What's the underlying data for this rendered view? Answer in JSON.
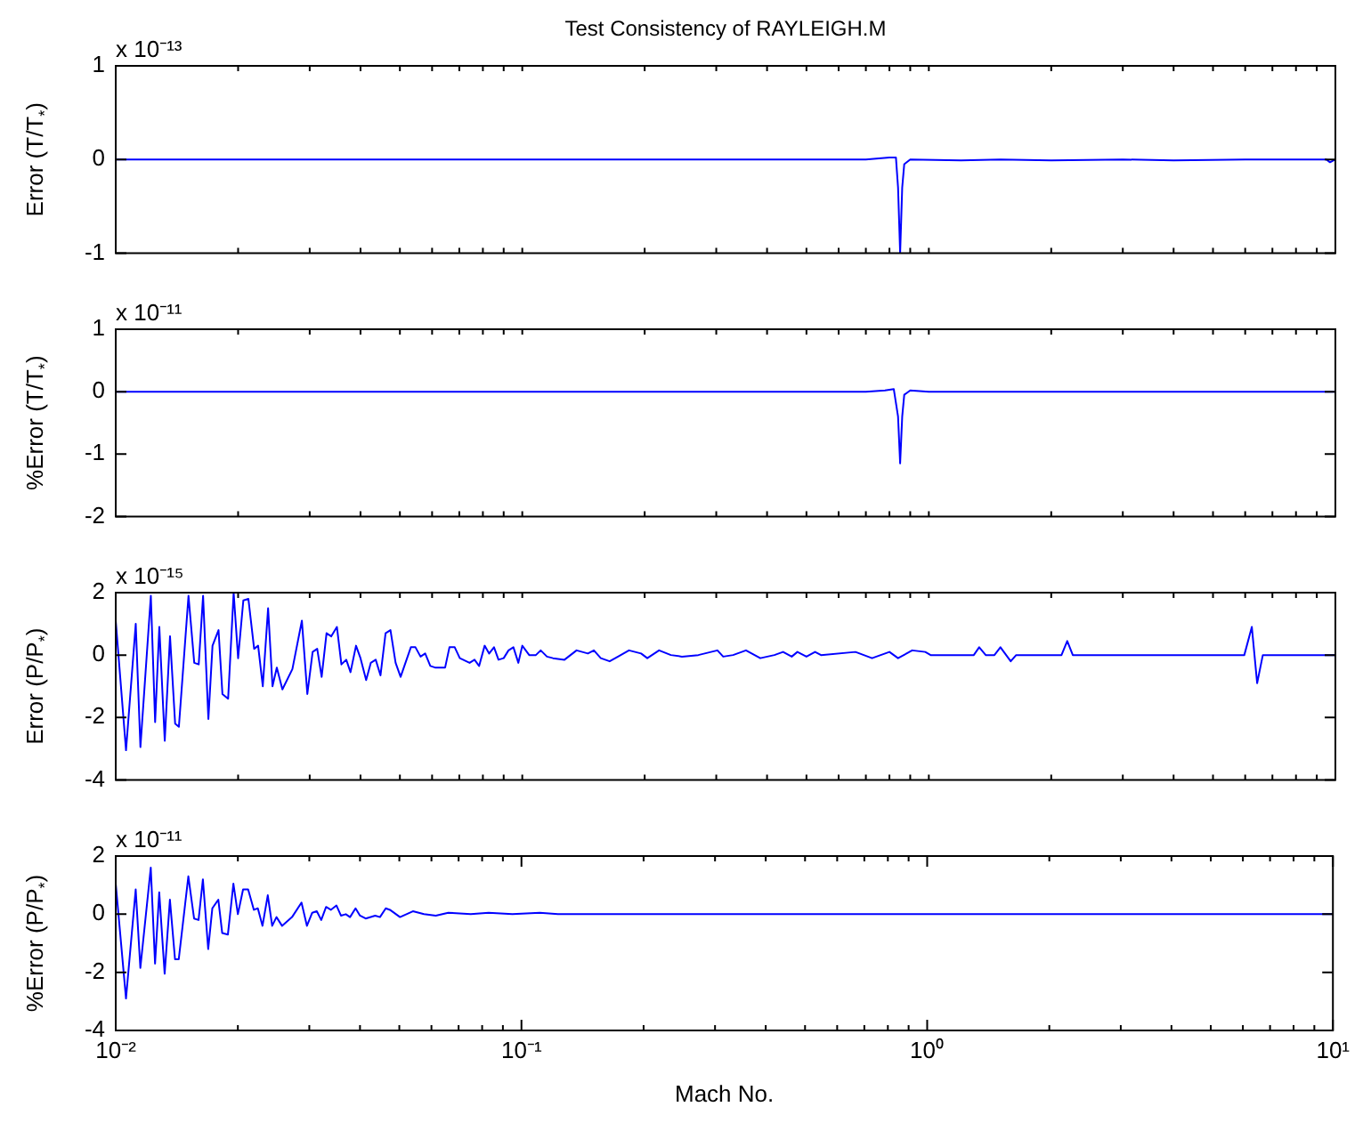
{
  "chart_data": [
    {
      "type": "line",
      "title": "Test Consistency of RAYLEIGH.M",
      "ylabel": "Error (T/T$_{*}$)",
      "annotations": [
        "x 10⁻¹³"
      ],
      "log": "x",
      "tick_labels": "y",
      "xlim": [
        0.01,
        10
      ],
      "ylim": [
        -1,
        1
      ],
      "yticks": [
        -1,
        0,
        1
      ],
      "xticks": [
        {
          "value": 0.01,
          "label": null
        },
        {
          "value": 0.02,
          "label": null
        },
        {
          "value": 0.03,
          "label": null
        },
        {
          "value": 0.04,
          "label": null
        },
        {
          "value": 0.05,
          "label": null
        },
        {
          "value": 0.06,
          "label": null
        },
        {
          "value": 0.07,
          "label": null
        },
        {
          "value": 0.08,
          "label": null
        },
        {
          "value": 0.09,
          "label": null
        },
        {
          "value": 0.1,
          "label": null
        },
        {
          "value": 0.2,
          "label": null
        },
        {
          "value": 0.3,
          "label": null
        },
        {
          "value": 0.4,
          "label": null
        },
        {
          "value": 0.5,
          "label": null
        },
        {
          "value": 0.6,
          "label": null
        },
        {
          "value": 0.7,
          "label": null
        },
        {
          "value": 0.8,
          "label": null
        },
        {
          "value": 0.9,
          "label": null
        },
        {
          "value": 1,
          "label": null
        },
        {
          "value": 2,
          "label": null
        },
        {
          "value": 3,
          "label": null
        },
        {
          "value": 4,
          "label": null
        },
        {
          "value": 5,
          "label": null
        },
        {
          "value": 6,
          "label": null
        },
        {
          "value": 7,
          "label": null
        },
        {
          "value": 8,
          "label": null
        },
        {
          "value": 9,
          "label": null
        },
        {
          "value": 10,
          "label": null
        }
      ],
      "series": [
        {
          "color": "#0000ff",
          "x": [
            0.01,
            0.7,
            0.8,
            0.83,
            0.84,
            0.85,
            0.86,
            0.87,
            0.9,
            1.2,
            1.5,
            2,
            3,
            4,
            6,
            8,
            9.5,
            9.7,
            10
          ],
          "values": [
            0,
            0,
            0.02,
            0.02,
            -0.3,
            -1,
            -0.3,
            -0.05,
            0,
            -0.01,
            0,
            -0.01,
            0,
            -0.01,
            0,
            0,
            0,
            -0.03,
            0
          ]
        }
      ]
    },
    {
      "type": "line",
      "ylabel": "%Error (T/T$_{*}$)",
      "annotations": [
        "x 10⁻¹¹"
      ],
      "log": "x",
      "tick_labels": "y",
      "xlim": [
        0.01,
        10
      ],
      "ylim": [
        -2,
        1
      ],
      "yticks": [
        -2,
        -1,
        0,
        1
      ],
      "xticks": [
        {
          "value": 0.01,
          "label": null
        },
        {
          "value": 0.02,
          "label": null
        },
        {
          "value": 0.03,
          "label": null
        },
        {
          "value": 0.04,
          "label": null
        },
        {
          "value": 0.05,
          "label": null
        },
        {
          "value": 0.06,
          "label": null
        },
        {
          "value": 0.07,
          "label": null
        },
        {
          "value": 0.08,
          "label": null
        },
        {
          "value": 0.09,
          "label": null
        },
        {
          "value": 0.1,
          "label": null
        },
        {
          "value": 0.2,
          "label": null
        },
        {
          "value": 0.3,
          "label": null
        },
        {
          "value": 0.4,
          "label": null
        },
        {
          "value": 0.5,
          "label": null
        },
        {
          "value": 0.6,
          "label": null
        },
        {
          "value": 0.7,
          "label": null
        },
        {
          "value": 0.8,
          "label": null
        },
        {
          "value": 0.9,
          "label": null
        },
        {
          "value": 1,
          "label": null
        },
        {
          "value": 2,
          "label": null
        },
        {
          "value": 3,
          "label": null
        },
        {
          "value": 4,
          "label": null
        },
        {
          "value": 5,
          "label": null
        },
        {
          "value": 6,
          "label": null
        },
        {
          "value": 7,
          "label": null
        },
        {
          "value": 8,
          "label": null
        },
        {
          "value": 9,
          "label": null
        },
        {
          "value": 10,
          "label": null
        }
      ],
      "series": [
        {
          "color": "#0000ff",
          "x": [
            0.01,
            0.7,
            0.78,
            0.82,
            0.84,
            0.85,
            0.86,
            0.87,
            0.9,
            1,
            10
          ],
          "values": [
            0,
            0,
            0.02,
            0.04,
            -0.4,
            -1.15,
            -0.4,
            -0.05,
            0.02,
            0,
            0
          ]
        }
      ]
    },
    {
      "type": "line",
      "ylabel": "Error (P/P$_{*}$)",
      "annotations": [
        "x 10⁻¹⁵"
      ],
      "log": "x",
      "tick_labels": "y",
      "xlim": [
        0.01,
        10
      ],
      "ylim": [
        -4,
        2
      ],
      "yticks": [
        -4,
        -2,
        0,
        2
      ],
      "xticks": [
        {
          "value": 0.01,
          "label": null
        },
        {
          "value": 0.02,
          "label": null
        },
        {
          "value": 0.03,
          "label": null
        },
        {
          "value": 0.04,
          "label": null
        },
        {
          "value": 0.05,
          "label": null
        },
        {
          "value": 0.06,
          "label": null
        },
        {
          "value": 0.07,
          "label": null
        },
        {
          "value": 0.08,
          "label": null
        },
        {
          "value": 0.09,
          "label": null
        },
        {
          "value": 0.1,
          "label": null
        },
        {
          "value": 0.2,
          "label": null
        },
        {
          "value": 0.3,
          "label": null
        },
        {
          "value": 0.4,
          "label": null
        },
        {
          "value": 0.5,
          "label": null
        },
        {
          "value": 0.6,
          "label": null
        },
        {
          "value": 0.7,
          "label": null
        },
        {
          "value": 0.8,
          "label": null
        },
        {
          "value": 0.9,
          "label": null
        },
        {
          "value": 1,
          "label": null
        },
        {
          "value": 2,
          "label": null
        },
        {
          "value": 3,
          "label": null
        },
        {
          "value": 4,
          "label": null
        },
        {
          "value": 5,
          "label": null
        },
        {
          "value": 6,
          "label": null
        },
        {
          "value": 7,
          "label": null
        },
        {
          "value": 8,
          "label": null
        },
        {
          "value": 9,
          "label": null
        },
        {
          "value": 10,
          "label": null
        }
      ],
      "series": [
        {
          "color": "#0000ff",
          "x": [
            0.01,
            0.0106,
            0.0112,
            0.0115,
            0.0122,
            0.0125,
            0.0128,
            0.0132,
            0.0136,
            0.014,
            0.0143,
            0.0151,
            0.0156,
            0.016,
            0.0164,
            0.0169,
            0.0173,
            0.0179,
            0.0183,
            0.0189,
            0.0195,
            0.02,
            0.0206,
            0.0212,
            0.0219,
            0.0224,
            0.023,
            0.0237,
            0.0243,
            0.0249,
            0.0257,
            0.0272,
            0.0287,
            0.0296,
            0.0305,
            0.0313,
            0.0321,
            0.033,
            0.0339,
            0.035,
            0.0359,
            0.0369,
            0.0378,
            0.039,
            0.04,
            0.0413,
            0.0424,
            0.0436,
            0.0448,
            0.0461,
            0.0474,
            0.0488,
            0.0502,
            0.0532,
            0.0546,
            0.0562,
            0.0577,
            0.0594,
            0.061,
            0.0646,
            0.0662,
            0.0682,
            0.0702,
            0.0742,
            0.0763,
            0.0783,
            0.0808,
            0.0829,
            0.0852,
            0.0874,
            0.09,
            0.0925,
            0.0951,
            0.0978,
            0.1,
            0.104,
            0.108,
            0.111,
            0.115,
            0.119,
            0.127,
            0.136,
            0.145,
            0.15,
            0.156,
            0.164,
            0.172,
            0.183,
            0.196,
            0.203,
            0.217,
            0.232,
            0.247,
            0.271,
            0.302,
            0.312,
            0.33,
            0.355,
            0.385,
            0.417,
            0.438,
            0.46,
            0.475,
            0.5,
            0.525,
            0.543,
            0.66,
            0.725,
            0.8,
            0.84,
            0.91,
            0.98,
            1.01,
            1.29,
            1.33,
            1.38,
            1.45,
            1.5,
            1.59,
            1.64,
            2.12,
            2.19,
            2.26,
            5.97,
            6.23,
            6.42,
            6.63,
            10
          ],
          "values": [
            1.1,
            -3.05,
            1,
            -2.95,
            1.9,
            -2.15,
            0.9,
            -2.75,
            0.6,
            -2.2,
            -2.3,
            1.9,
            -0.25,
            -0.3,
            1.9,
            -2.05,
            0.3,
            0.8,
            -1.25,
            -1.4,
            2,
            -0.1,
            1.75,
            1.8,
            0.2,
            0.3,
            -1,
            1.5,
            -1,
            -0.4,
            -1.1,
            -0.45,
            1.1,
            -1.25,
            0.1,
            0.2,
            -0.7,
            0.7,
            0.6,
            0.9,
            -0.3,
            -0.15,
            -0.55,
            0.3,
            -0.1,
            -0.8,
            -0.25,
            -0.15,
            -0.65,
            0.7,
            0.8,
            -0.25,
            -0.7,
            0.25,
            0.25,
            -0.05,
            0.05,
            -0.35,
            -0.4,
            -0.4,
            0.25,
            0.25,
            -0.1,
            -0.25,
            -0.15,
            -0.35,
            0.3,
            0.05,
            0.25,
            -0.15,
            -0.1,
            0.15,
            0.25,
            -0.25,
            0.3,
            0,
            0,
            0.15,
            -0.05,
            -0.1,
            -0.15,
            0.15,
            0.05,
            0.15,
            -0.1,
            -0.2,
            -0.05,
            0.15,
            0.05,
            -0.1,
            0.15,
            0,
            -0.05,
            0,
            0.15,
            -0.05,
            0,
            0.15,
            -0.1,
            0,
            0.1,
            -0.05,
            0.1,
            -0.05,
            0.1,
            0,
            0.1,
            -0.1,
            0.1,
            -0.1,
            0.15,
            0.1,
            0,
            0,
            0.25,
            0,
            0,
            0.25,
            -0.2,
            0,
            0,
            0.45,
            0,
            0,
            0.9,
            -0.9,
            0,
            0
          ]
        }
      ]
    },
    {
      "type": "line",
      "ylabel": "%Error (P/P$_{*}$)",
      "xlabel": "Mach No.",
      "annotations": [
        "x 10⁻¹¹"
      ],
      "log": "x",
      "xlim": [
        0.01,
        10
      ],
      "ylim": [
        -4,
        2
      ],
      "yticks": [
        -4,
        -2,
        0,
        2
      ],
      "xticks": [
        {
          "value": 0.01,
          "label": "10⁻²"
        },
        {
          "value": 0.02,
          "label": null
        },
        {
          "value": 0.03,
          "label": null
        },
        {
          "value": 0.04,
          "label": null
        },
        {
          "value": 0.05,
          "label": null
        },
        {
          "value": 0.06,
          "label": null
        },
        {
          "value": 0.07,
          "label": null
        },
        {
          "value": 0.08,
          "label": null
        },
        {
          "value": 0.09,
          "label": null
        },
        {
          "value": 0.1,
          "label": "10⁻¹"
        },
        {
          "value": 0.2,
          "label": null
        },
        {
          "value": 0.3,
          "label": null
        },
        {
          "value": 0.4,
          "label": null
        },
        {
          "value": 0.5,
          "label": null
        },
        {
          "value": 0.6,
          "label": null
        },
        {
          "value": 0.7,
          "label": null
        },
        {
          "value": 0.8,
          "label": null
        },
        {
          "value": 0.9,
          "label": null
        },
        {
          "value": 1,
          "label": "10⁰"
        },
        {
          "value": 2,
          "label": null
        },
        {
          "value": 3,
          "label": null
        },
        {
          "value": 4,
          "label": null
        },
        {
          "value": 5,
          "label": null
        },
        {
          "value": 6,
          "label": null
        },
        {
          "value": 7,
          "label": null
        },
        {
          "value": 8,
          "label": null
        },
        {
          "value": 9,
          "label": null
        },
        {
          "value": 10,
          "label": "10¹"
        }
      ],
      "series": [
        {
          "color": "#0000ff",
          "x": [
            0.01,
            0.0106,
            0.0112,
            0.0115,
            0.0122,
            0.0125,
            0.0128,
            0.0132,
            0.0136,
            0.014,
            0.0143,
            0.0151,
            0.0156,
            0.016,
            0.0164,
            0.0169,
            0.0173,
            0.0179,
            0.0183,
            0.0189,
            0.0195,
            0.02,
            0.0206,
            0.0212,
            0.0219,
            0.0224,
            0.023,
            0.0237,
            0.0243,
            0.0249,
            0.0257,
            0.0272,
            0.0287,
            0.0296,
            0.0305,
            0.0313,
            0.0321,
            0.033,
            0.0339,
            0.035,
            0.0359,
            0.0369,
            0.0378,
            0.039,
            0.04,
            0.0413,
            0.0436,
            0.0448,
            0.0463,
            0.0474,
            0.0502,
            0.054,
            0.0575,
            0.0615,
            0.066,
            0.075,
            0.083,
            0.095,
            0.111,
            0.123,
            10
          ],
          "values": [
            1.05,
            -2.9,
            0.85,
            -1.85,
            1.6,
            -1.7,
            0.75,
            -2.05,
            0.5,
            -1.55,
            -1.55,
            1.3,
            -0.15,
            -0.2,
            1.2,
            -1.2,
            0.2,
            0.5,
            -0.65,
            -0.7,
            1.05,
            0,
            0.85,
            0.85,
            0.15,
            0.2,
            -0.4,
            0.65,
            -0.4,
            -0.1,
            -0.4,
            -0.1,
            0.4,
            -0.4,
            0.05,
            0.1,
            -0.2,
            0.25,
            0.15,
            0.3,
            -0.05,
            0,
            -0.1,
            0.2,
            -0.05,
            -0.15,
            -0.05,
            -0.1,
            0.2,
            0.15,
            -0.1,
            0.1,
            0,
            -0.05,
            0.05,
            0,
            0.05,
            0,
            0.05,
            0,
            0
          ]
        }
      ]
    }
  ]
}
